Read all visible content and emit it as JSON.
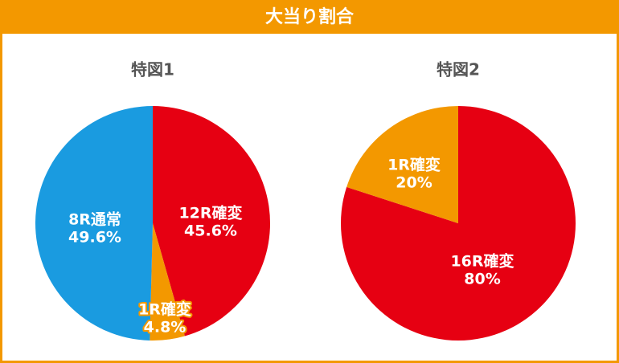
{
  "header": {
    "title": "大当り割合"
  },
  "chart_data": [
    {
      "type": "pie",
      "title": "特図1",
      "categories": [
        "12R確変",
        "1R確変",
        "8R通常"
      ],
      "values": [
        45.6,
        4.8,
        49.6
      ],
      "value_labels": [
        "45.6%",
        "4.8%",
        "49.6%"
      ],
      "colors": [
        "#e60012",
        "#f39800",
        "#1a9be0"
      ]
    },
    {
      "type": "pie",
      "title": "特図2",
      "categories": [
        "16R確変",
        "1R確変"
      ],
      "values": [
        80,
        20
      ],
      "value_labels": [
        "80%",
        "20%"
      ],
      "colors": [
        "#e60012",
        "#f39800"
      ]
    }
  ]
}
